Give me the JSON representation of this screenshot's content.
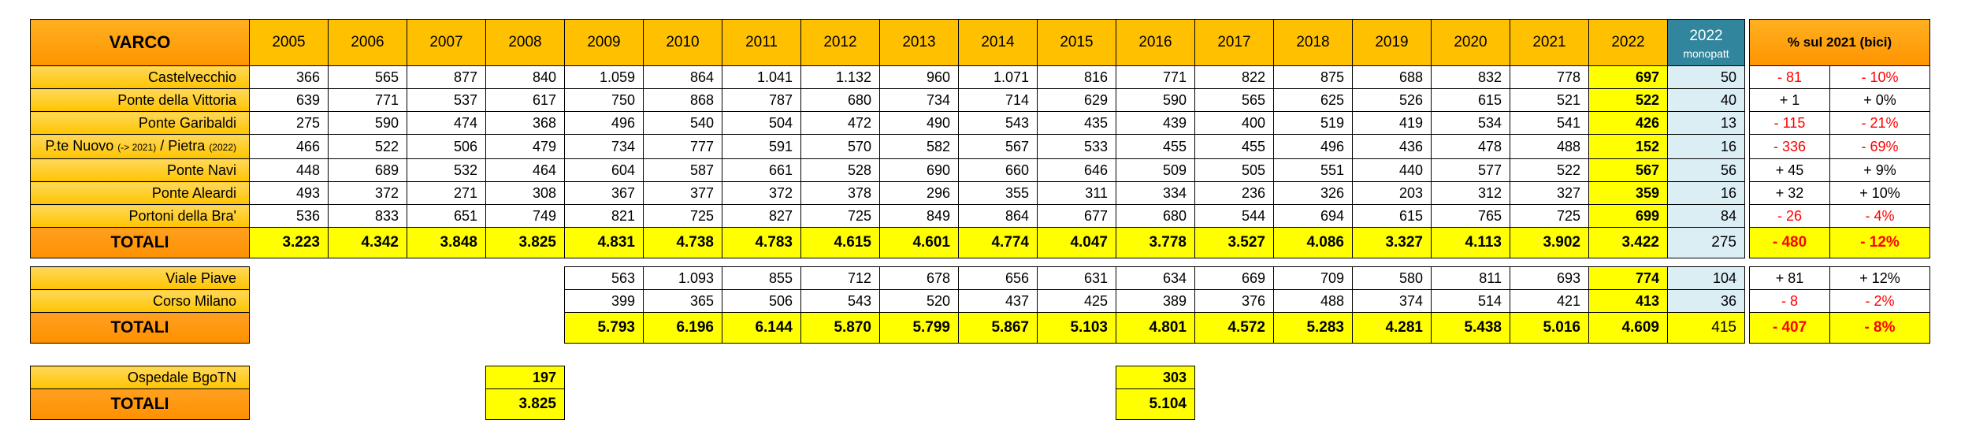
{
  "header": {
    "varco": "VARCO",
    "years": [
      "2005",
      "2006",
      "2007",
      "2008",
      "2009",
      "2010",
      "2011",
      "2012",
      "2013",
      "2014",
      "2015",
      "2016",
      "2017",
      "2018",
      "2019",
      "2020",
      "2021",
      "2022"
    ],
    "monopatt_year": "2022",
    "monopatt_label": "monopatt",
    "pct_label": "% sul 2021 (bici)"
  },
  "group1": {
    "rows": [
      {
        "name": "Castelvecchio",
        "values": [
          "366",
          "565",
          "877",
          "840",
          "1.059",
          "864",
          "1.041",
          "1.132",
          "960",
          "1.071",
          "816",
          "771",
          "822",
          "875",
          "688",
          "832",
          "778",
          "697"
        ],
        "monopatt": "50",
        "diff": "- 81",
        "pct": "- 10%"
      },
      {
        "name": "Ponte della Vittoria",
        "values": [
          "639",
          "771",
          "537",
          "617",
          "750",
          "868",
          "787",
          "680",
          "734",
          "714",
          "629",
          "590",
          "565",
          "625",
          "526",
          "615",
          "521",
          "522"
        ],
        "monopatt": "40",
        "diff": "+ 1",
        "pct": "+ 0%"
      },
      {
        "name": "Ponte Garibaldi",
        "values": [
          "275",
          "590",
          "474",
          "368",
          "496",
          "540",
          "504",
          "472",
          "490",
          "543",
          "435",
          "439",
          "400",
          "519",
          "419",
          "534",
          "541",
          "426"
        ],
        "monopatt": "13",
        "diff": "- 115",
        "pct": "- 21%"
      },
      {
        "name_a": "P.te Nuovo ",
        "name_b": "(-> 2021)",
        "name_c": " / Pietra ",
        "name_d": "(2022)",
        "values": [
          "466",
          "522",
          "506",
          "479",
          "734",
          "777",
          "591",
          "570",
          "582",
          "567",
          "533",
          "455",
          "455",
          "496",
          "436",
          "478",
          "488",
          "152"
        ],
        "monopatt": "16",
        "diff": "- 336",
        "pct": "- 69%"
      },
      {
        "name": "Ponte Navi",
        "values": [
          "448",
          "689",
          "532",
          "464",
          "604",
          "587",
          "661",
          "528",
          "690",
          "660",
          "646",
          "509",
          "505",
          "551",
          "440",
          "577",
          "522",
          "567"
        ],
        "monopatt": "56",
        "diff": "+ 45",
        "pct": "+ 9%"
      },
      {
        "name": "Ponte Aleardi",
        "values": [
          "493",
          "372",
          "271",
          "308",
          "367",
          "377",
          "372",
          "378",
          "296",
          "355",
          "311",
          "334",
          "236",
          "326",
          "203",
          "312",
          "327",
          "359"
        ],
        "monopatt": "16",
        "diff": "+ 32",
        "pct": "+ 10%"
      },
      {
        "name": "Portoni della Bra'",
        "values": [
          "536",
          "833",
          "651",
          "749",
          "821",
          "725",
          "827",
          "725",
          "849",
          "864",
          "677",
          "680",
          "544",
          "694",
          "615",
          "765",
          "725",
          "699"
        ],
        "monopatt": "84",
        "diff": "- 26",
        "pct": "- 4%"
      }
    ],
    "total": {
      "label": "TOTALI",
      "values": [
        "3.223",
        "4.342",
        "3.848",
        "3.825",
        "4.831",
        "4.738",
        "4.783",
        "4.615",
        "4.601",
        "4.774",
        "4.047",
        "3.778",
        "3.527",
        "4.086",
        "3.327",
        "4.113",
        "3.902",
        "3.422"
      ],
      "monopatt": "275",
      "diff": "- 480",
      "pct": "- 12%"
    }
  },
  "group2": {
    "rows": [
      {
        "name": "Viale Piave",
        "values": [
          "563",
          "1.093",
          "855",
          "712",
          "678",
          "656",
          "631",
          "634",
          "669",
          "709",
          "580",
          "811",
          "693",
          "774"
        ],
        "monopatt": "104",
        "diff": "+ 81",
        "pct": "+ 12%"
      },
      {
        "name": "Corso Milano",
        "values": [
          "399",
          "365",
          "506",
          "543",
          "520",
          "437",
          "425",
          "389",
          "376",
          "488",
          "374",
          "514",
          "421",
          "413"
        ],
        "monopatt": "36",
        "diff": "- 8",
        "pct": "- 2%"
      }
    ],
    "total": {
      "label": "TOTALI",
      "values": [
        "5.793",
        "6.196",
        "6.144",
        "5.870",
        "5.799",
        "5.867",
        "5.103",
        "4.801",
        "4.572",
        "5.283",
        "4.281",
        "5.438",
        "5.016",
        "4.609"
      ],
      "monopatt": "415",
      "diff": "- 407",
      "pct": "- 8%"
    }
  },
  "group3": {
    "row": {
      "name": "Ospedale BgoTN",
      "v2008": "197",
      "v2016": "303"
    },
    "total": {
      "label": "TOTALI",
      "v2008": "3.825",
      "v2016": "5.104"
    }
  },
  "colors": {
    "orange": "#ff9400",
    "gold": "#ffc000",
    "yellow": "#ffff00",
    "teal": "#31859c",
    "light_blue": "#dbeef4",
    "negative": "#ff0000"
  }
}
